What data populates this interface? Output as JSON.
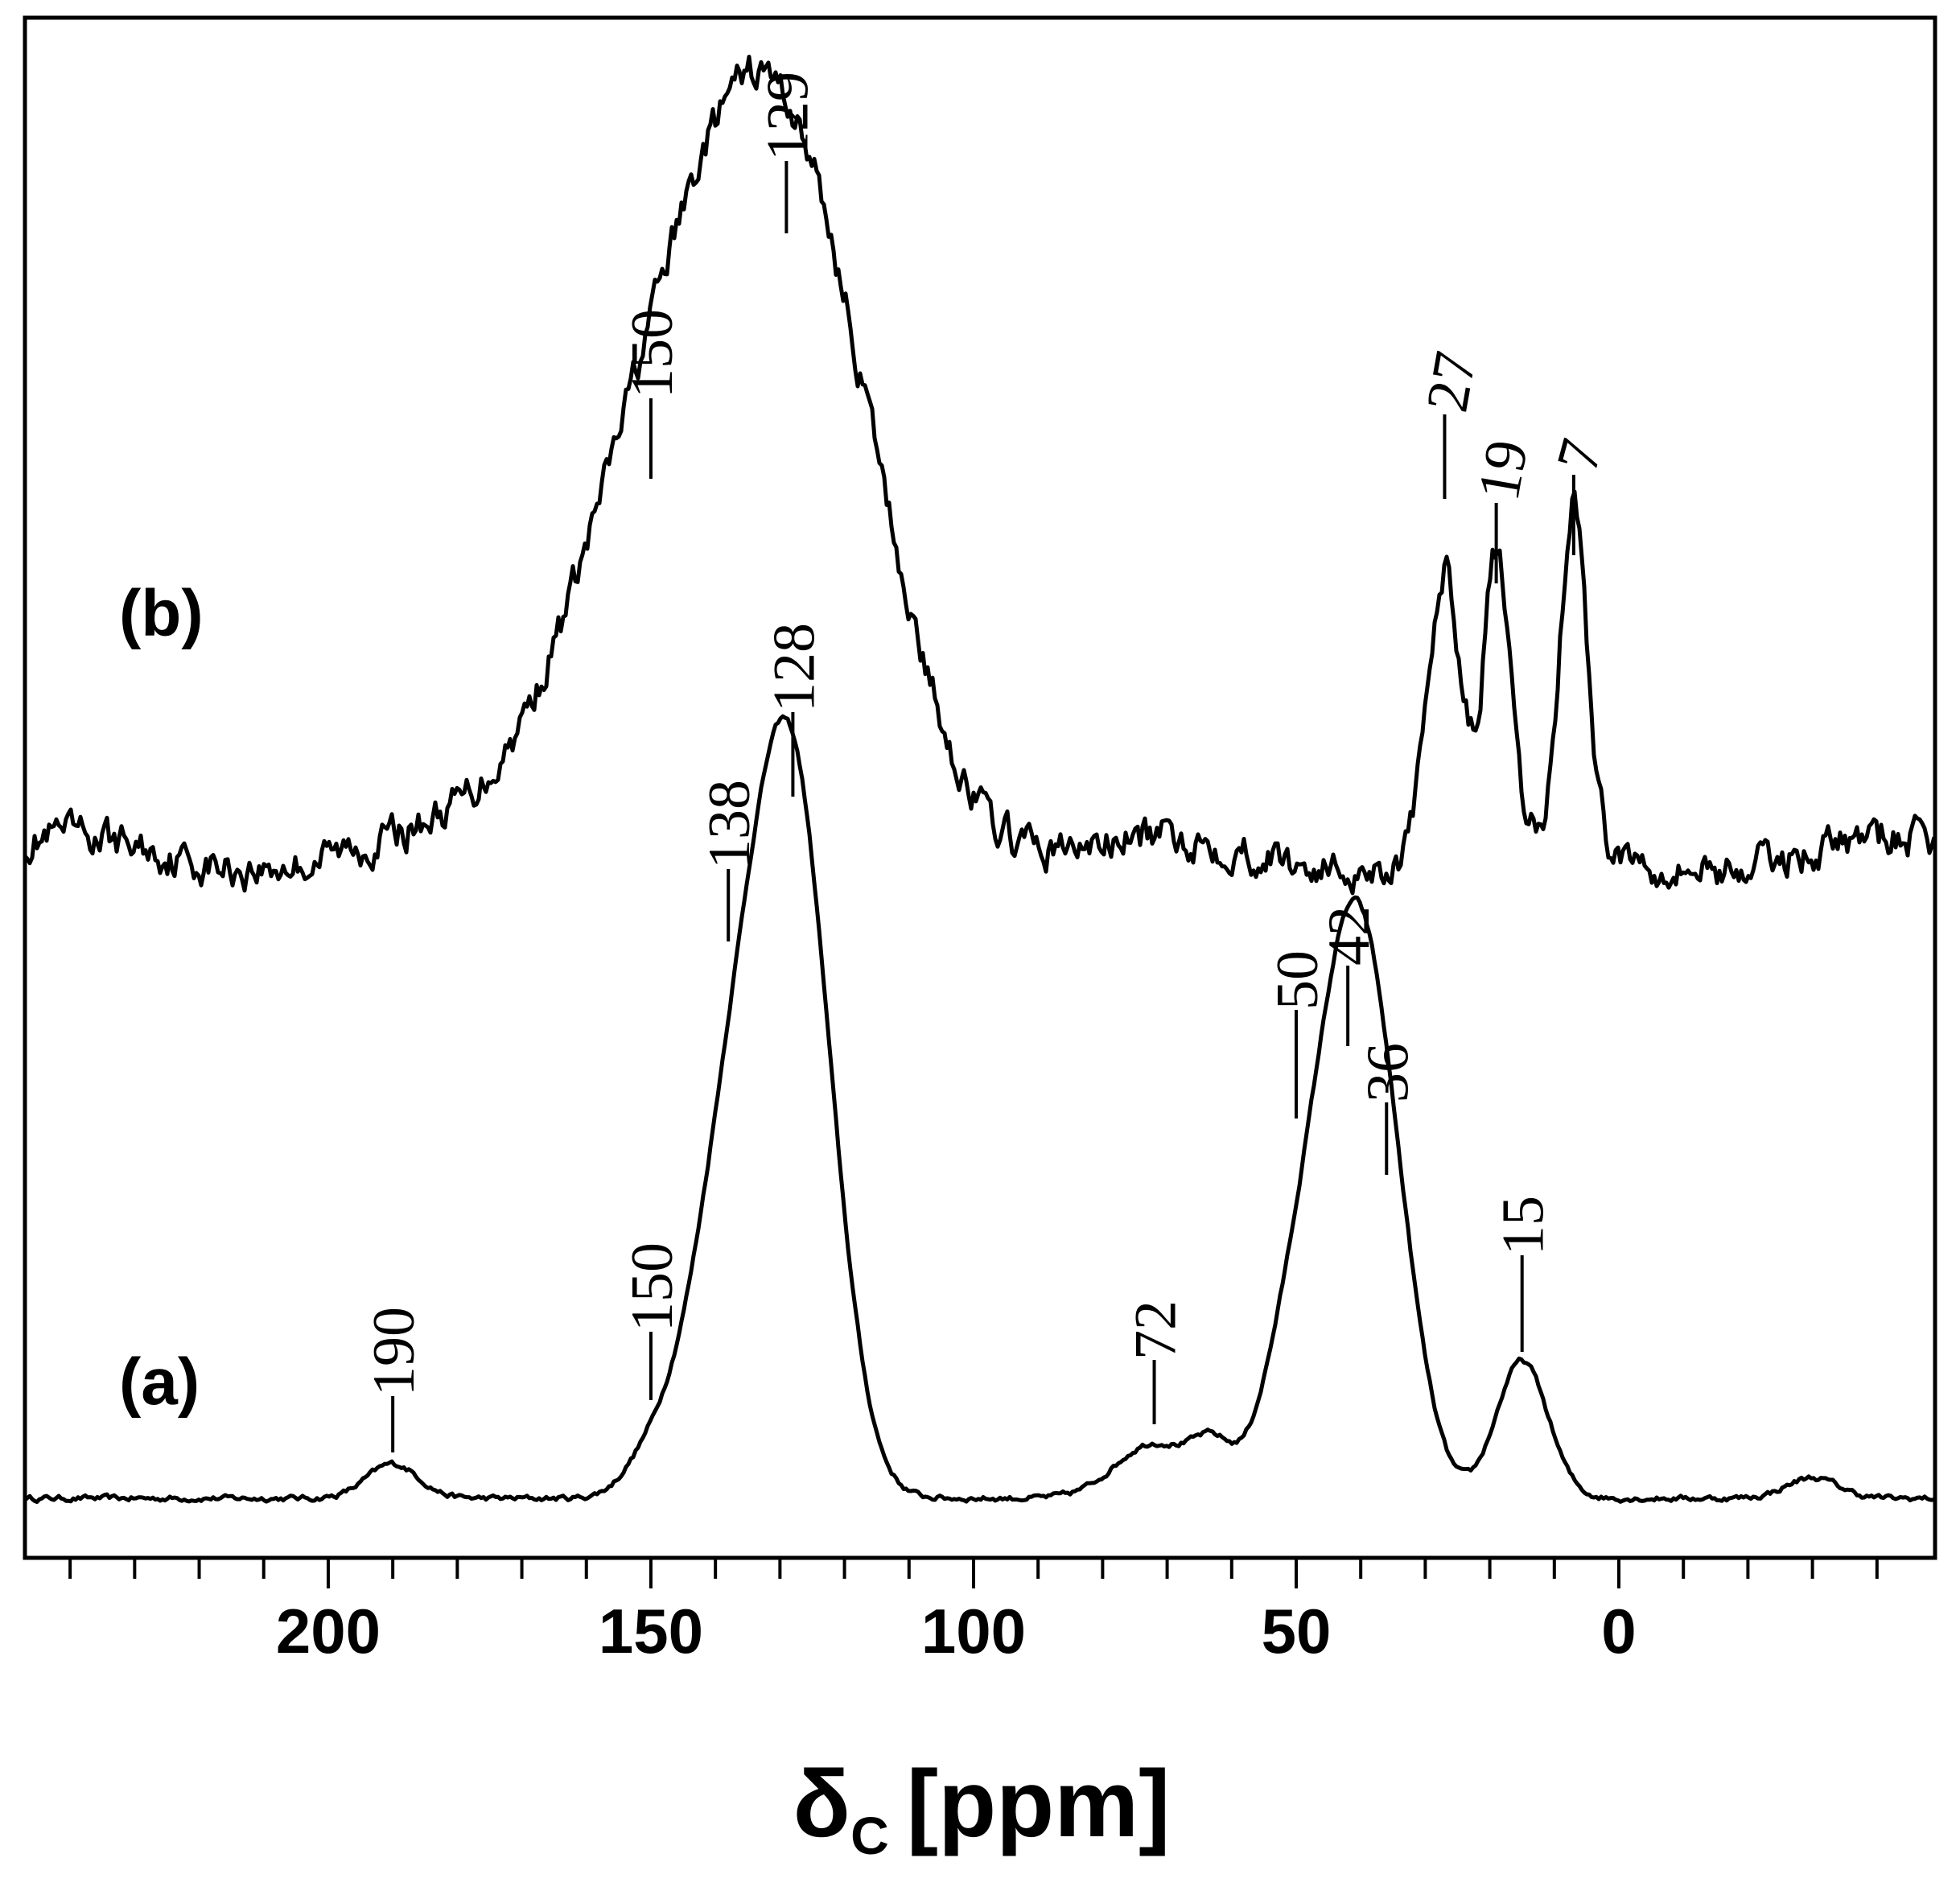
{
  "chart_data": {
    "type": "line",
    "title": "",
    "xlabel": "δ",
    "xlabel_subscript": "C",
    "xlabel_unit": "[ppm]",
    "ylabel": "",
    "xlim": [
      247,
      -49
    ],
    "x_reversed": true,
    "x_ticks": [
      200,
      150,
      100,
      50,
      0
    ],
    "x_tick_labels": [
      "200",
      "150",
      "100",
      "50",
      "0"
    ],
    "x_minor_step": 10,
    "grid": false,
    "legend": "none",
    "series": [
      {
        "name": "(a)",
        "peaks": [
          {
            "ppm": 190,
            "label": "190",
            "height": 0.05,
            "width": 4
          },
          {
            "ppm": 150,
            "label": "150",
            "height": 0.05,
            "width": 4
          },
          {
            "ppm": 138,
            "label": "138",
            "height": 0.45,
            "width": 6
          },
          {
            "ppm": 128,
            "label": "128",
            "height": 1.0,
            "width": 6
          },
          {
            "ppm": 72,
            "label": "72",
            "height": 0.08,
            "width": 6
          },
          {
            "ppm": 63,
            "label": "",
            "height": 0.06,
            "width": 3
          },
          {
            "ppm": 50,
            "label": "50",
            "height": 0.25,
            "width": 5
          },
          {
            "ppm": 42,
            "label": "42",
            "height": 0.62,
            "width": 5
          },
          {
            "ppm": 36,
            "label": "36",
            "height": 0.35,
            "width": 5
          },
          {
            "ppm": 15,
            "label": "15",
            "height": 0.2,
            "width": 4
          },
          {
            "ppm": -30,
            "label": "",
            "height": 0.03,
            "width": 4
          }
        ]
      },
      {
        "name": "(b)",
        "peaks": [
          {
            "ppm": 150,
            "label": "150",
            "height": 0.55,
            "width": 14
          },
          {
            "ppm": 129,
            "label": "129",
            "height": 1.0,
            "width": 14
          },
          {
            "ppm": 27,
            "label": "27",
            "height": 0.45,
            "width": 2.5
          },
          {
            "ppm": 19,
            "label": "19",
            "height": 0.45,
            "width": 2.0
          },
          {
            "ppm": 7,
            "label": "7",
            "height": 0.55,
            "width": 2.0
          }
        ]
      }
    ]
  }
}
